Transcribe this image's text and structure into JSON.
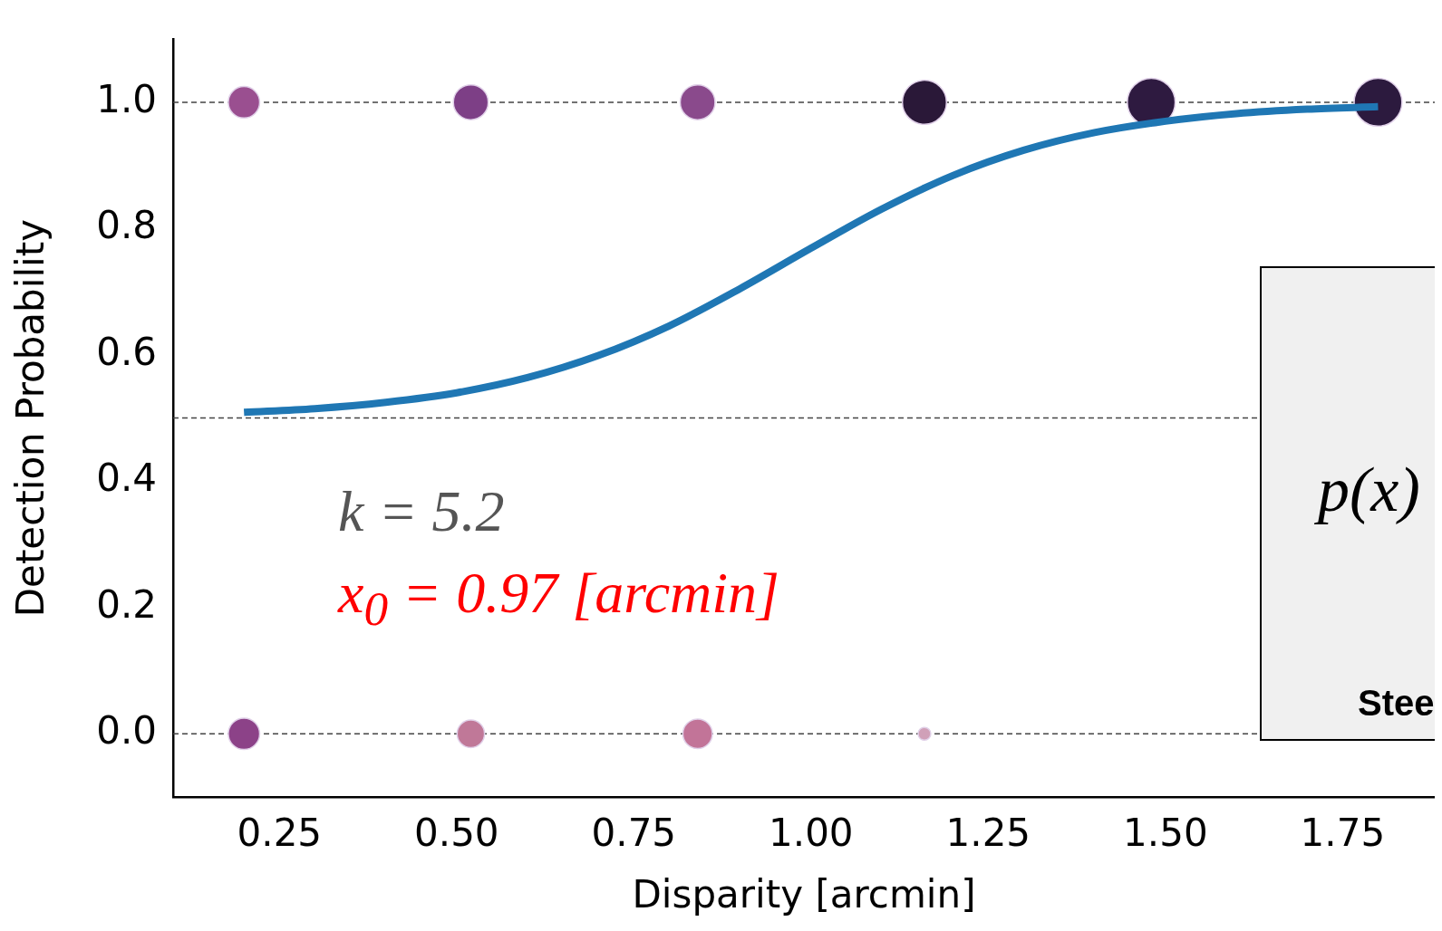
{
  "chart_data": {
    "type": "bubble",
    "xlabel": "Disparity [arcmin]",
    "ylabel": "Detection Probability",
    "xlim": [
      0.1,
      1.88
    ],
    "xticks": [
      0.25,
      {
        "value": 0.5,
        "label": "0.50"
      },
      0.75,
      {
        "value": 1,
        "label": "1.00"
      },
      1.25,
      {
        "value": 1.5,
        "label": "1.50"
      },
      1.75
    ],
    "ylim": [
      -0.1,
      1.1
    ],
    "yticks": [
      {
        "value": 0,
        "label": "0.0"
      },
      0.2,
      0.4,
      0.6,
      0.8,
      {
        "value": 1,
        "label": "1.0"
      }
    ],
    "grid": false,
    "legend": false,
    "marker": "circle",
    "ref_lines": [
      {
        "axis": "y",
        "value": 1,
        "color": "#444444",
        "line_style": "dashed"
      },
      {
        "axis": "y",
        "value": 0.5,
        "color": "#444444",
        "line_style": "dashed"
      },
      {
        "axis": "y",
        "value": 0,
        "color": "#444444",
        "line_style": "dashed"
      }
    ],
    "series": [
      {
        "type": "bubble",
        "x": [
          0.2,
          0.52,
          0.84,
          1.16,
          1.48,
          1.8,
          0.2,
          0.52,
          0.84,
          1.16
        ],
        "values": [
          1,
          1,
          1,
          1,
          1,
          1,
          0,
          0,
          0,
          0
        ],
        "sizes": [
          0.43,
          0.53,
          0.53,
          0.85,
          1,
          1,
          0.43,
          0.33,
          0.38,
          0.07
        ],
        "colors": [
          "#9a4f90",
          "#7d3f86",
          "#8a4a8c",
          "#2a1838",
          "#2e1a40",
          "#2c1a3e",
          "#8c4288",
          "#c07898",
          "#c27498",
          "#d0a0b8"
        ]
      },
      {
        "type": "line",
        "color": "#1f77b4",
        "marker": "none",
        "line_style": "solid",
        "x": [
          0.2,
          0.3,
          0.4,
          0.5,
          0.6,
          0.7,
          0.8,
          0.9,
          1.0,
          1.1,
          1.2,
          1.3,
          1.4,
          1.5,
          1.6,
          1.7,
          1.8
        ],
        "values": [
          0.509,
          0.515,
          0.525,
          0.54,
          0.564,
          0.599,
          0.646,
          0.705,
          0.769,
          0.831,
          0.884,
          0.924,
          0.952,
          0.97,
          0.982,
          0.989,
          0.993
        ]
      }
    ],
    "annotations": [
      "k = 5.2",
      "x$_{0}$ = 0.97 [arcmin]",
      "p(x)",
      "Stee"
    ]
  }
}
